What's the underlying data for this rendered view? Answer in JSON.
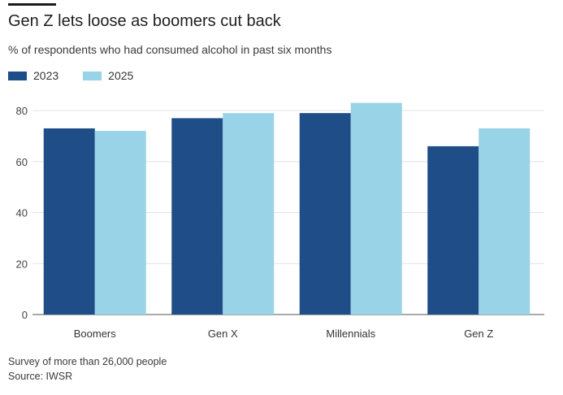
{
  "chart_data": {
    "type": "bar",
    "title": "Gen Z lets loose as boomers cut back",
    "subtitle": "% of respondents who had consumed alcohol in past six months",
    "categories": [
      "Boomers",
      "Gen X",
      "Millennials",
      "Gen Z"
    ],
    "series": [
      {
        "name": "2023",
        "color": "#1e4d87",
        "values": [
          73,
          77,
          79,
          66
        ]
      },
      {
        "name": "2025",
        "color": "#98d3e8",
        "values": [
          72,
          79,
          83,
          73
        ]
      }
    ],
    "yticks": [
      "0",
      "20",
      "40",
      "60",
      "80"
    ],
    "ytick_values": [
      0,
      20,
      40,
      60,
      80
    ],
    "ylim": [
      0,
      85
    ],
    "xlabel": "",
    "ylabel": "",
    "grid": true,
    "legend": "top-left"
  },
  "footnotes": {
    "note": "Survey of more than 26,000 people",
    "source": "Source: IWSR"
  }
}
